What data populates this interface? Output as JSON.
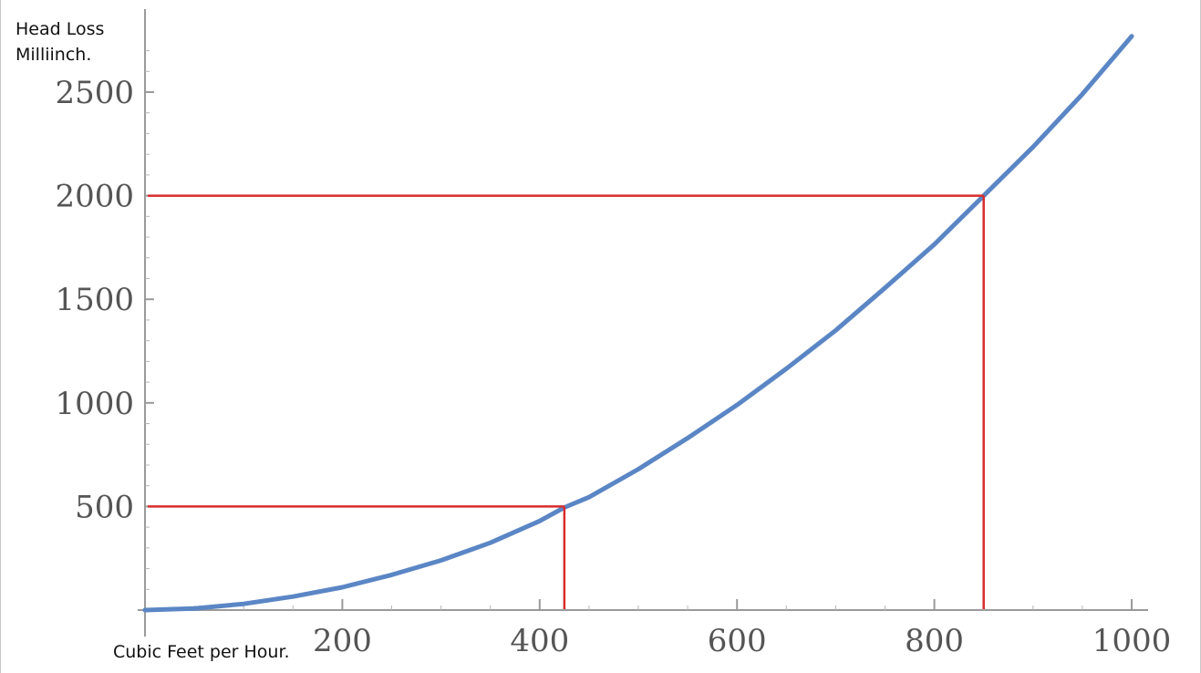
{
  "chart_data": {
    "type": "line",
    "title": "",
    "ylabel_lines": [
      "Head Loss",
      "Milliinch."
    ],
    "xlabel": "Cubic Feet per Hour.",
    "xlim": [
      0,
      1020
    ],
    "ylim": [
      0,
      2800
    ],
    "xticks": [
      200,
      400,
      600,
      800,
      1000
    ],
    "yticks": [
      500,
      1000,
      1500,
      2000,
      2500
    ],
    "grid": false,
    "series": [
      {
        "color": "#5b86c5",
        "x": [
          0,
          50,
          100,
          150,
          200,
          250,
          300,
          350,
          400,
          425,
          450,
          500,
          550,
          600,
          650,
          700,
          750,
          800,
          850,
          900,
          950,
          1000
        ],
        "y": [
          0,
          8,
          30,
          65,
          110,
          170,
          240,
          325,
          430,
          495,
          545,
          680,
          830,
          990,
          1165,
          1350,
          1555,
          1765,
          2000,
          2235,
          2490,
          2770
        ]
      }
    ],
    "annotations": [
      {
        "type": "lookup",
        "x": 425,
        "y": 500,
        "color": "#d92c2c"
      },
      {
        "type": "lookup",
        "x": 850,
        "y": 2000,
        "color": "#d92c2c"
      }
    ]
  }
}
